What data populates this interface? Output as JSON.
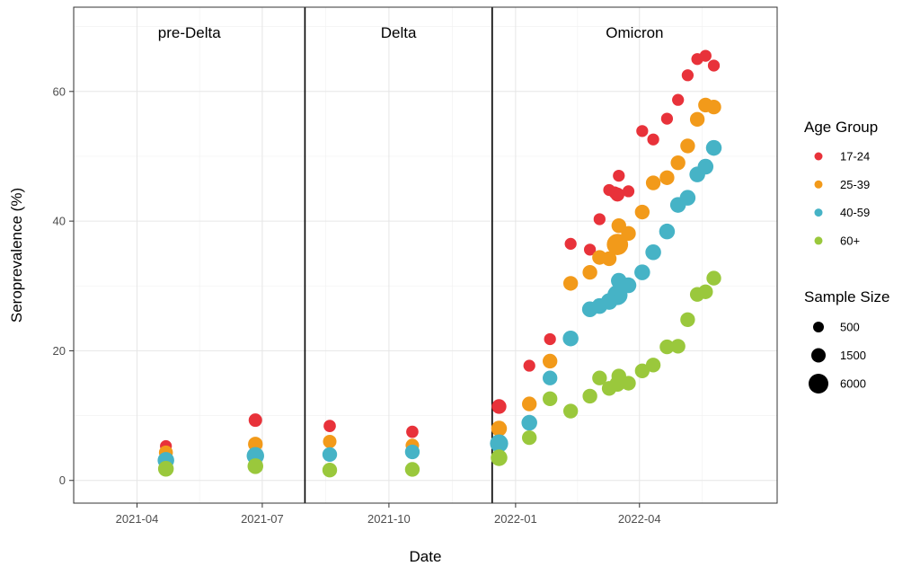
{
  "chart_data": {
    "type": "scatter",
    "xlabel": "Date",
    "ylabel": "Seroprevalence (%)",
    "x_type": "date",
    "xlim": [
      "2021-02-14",
      "2022-07-10"
    ],
    "ylim": [
      -3.5,
      73
    ],
    "x_ticks": [
      "2021-04-01",
      "2021-07-01",
      "2021-10-01",
      "2022-01-01",
      "2022-04-01"
    ],
    "x_tick_labels": [
      "2021-04",
      "2021-07",
      "2021-10",
      "2022-01",
      "2022-04"
    ],
    "y_ticks": [
      0,
      20,
      40,
      60
    ],
    "grid": true,
    "periods": [
      {
        "label": "pre-Delta",
        "start": "2021-02-14",
        "end": "2021-08-01"
      },
      {
        "label": "Delta",
        "start": "2021-08-01",
        "end": "2021-12-15"
      },
      {
        "label": "Omicron",
        "start": "2021-12-15",
        "end": "2022-07-10"
      }
    ],
    "period_boundaries": [
      "2021-08-01",
      "2021-12-15"
    ],
    "color_legend": {
      "title": "Age Group",
      "entries": [
        {
          "label": "17-24",
          "color": "#e8323a"
        },
        {
          "label": "25-39",
          "color": "#f29a1a"
        },
        {
          "label": "40-59",
          "color": "#46b3c6"
        },
        {
          "label": "60+",
          "color": "#9ac83c"
        }
      ]
    },
    "size_legend": {
      "title": "Sample Size",
      "entries": [
        {
          "label": "500",
          "value": 500
        },
        {
          "label": "1500",
          "value": 1500
        },
        {
          "label": "6000",
          "value": 6000
        }
      ]
    },
    "series": [
      {
        "name": "17-24",
        "color": "#e8323a",
        "points": [
          {
            "x": "2021-04-22",
            "y": 5.3,
            "n": 500
          },
          {
            "x": "2021-06-26",
            "y": 9.3,
            "n": 1000
          },
          {
            "x": "2021-08-19",
            "y": 8.4,
            "n": 600
          },
          {
            "x": "2021-10-18",
            "y": 7.5,
            "n": 600
          },
          {
            "x": "2021-12-20",
            "y": 11.4,
            "n": 1500
          },
          {
            "x": "2022-01-11",
            "y": 17.7,
            "n": 500
          },
          {
            "x": "2022-01-26",
            "y": 21.8,
            "n": 500
          },
          {
            "x": "2022-02-10",
            "y": 36.5,
            "n": 500
          },
          {
            "x": "2022-02-24",
            "y": 35.6,
            "n": 500
          },
          {
            "x": "2022-03-03",
            "y": 40.3,
            "n": 500
          },
          {
            "x": "2022-03-10",
            "y": 44.8,
            "n": 500
          },
          {
            "x": "2022-03-14",
            "y": 44.4,
            "n": 600
          },
          {
            "x": "2022-03-16",
            "y": 44.1,
            "n": 1200
          },
          {
            "x": "2022-03-17",
            "y": 47.0,
            "n": 500
          },
          {
            "x": "2022-03-24",
            "y": 44.6,
            "n": 500
          },
          {
            "x": "2022-04-03",
            "y": 53.9,
            "n": 500
          },
          {
            "x": "2022-04-11",
            "y": 52.6,
            "n": 500
          },
          {
            "x": "2022-04-21",
            "y": 55.8,
            "n": 500
          },
          {
            "x": "2022-04-29",
            "y": 58.7,
            "n": 500
          },
          {
            "x": "2022-05-06",
            "y": 62.5,
            "n": 500
          },
          {
            "x": "2022-05-13",
            "y": 65.0,
            "n": 500
          },
          {
            "x": "2022-05-19",
            "y": 65.5,
            "n": 500
          },
          {
            "x": "2022-05-25",
            "y": 64.0,
            "n": 500
          }
        ]
      },
      {
        "name": "25-39",
        "color": "#f29a1a",
        "points": [
          {
            "x": "2021-04-22",
            "y": 4.3,
            "n": 1200
          },
          {
            "x": "2021-06-26",
            "y": 5.6,
            "n": 1500
          },
          {
            "x": "2021-08-19",
            "y": 6.0,
            "n": 1000
          },
          {
            "x": "2021-10-18",
            "y": 5.4,
            "n": 1000
          },
          {
            "x": "2021-12-20",
            "y": 8.0,
            "n": 2000
          },
          {
            "x": "2022-01-11",
            "y": 11.8,
            "n": 1500
          },
          {
            "x": "2022-01-26",
            "y": 18.4,
            "n": 1500
          },
          {
            "x": "2022-02-10",
            "y": 30.4,
            "n": 1500
          },
          {
            "x": "2022-02-24",
            "y": 32.1,
            "n": 1500
          },
          {
            "x": "2022-03-03",
            "y": 34.4,
            "n": 1500
          },
          {
            "x": "2022-03-10",
            "y": 34.2,
            "n": 1500
          },
          {
            "x": "2022-03-16",
            "y": 36.4,
            "n": 6000
          },
          {
            "x": "2022-03-17",
            "y": 39.3,
            "n": 1500
          },
          {
            "x": "2022-03-24",
            "y": 38.1,
            "n": 1500
          },
          {
            "x": "2022-04-03",
            "y": 41.4,
            "n": 1500
          },
          {
            "x": "2022-04-11",
            "y": 45.9,
            "n": 1500
          },
          {
            "x": "2022-04-21",
            "y": 46.7,
            "n": 1500
          },
          {
            "x": "2022-04-29",
            "y": 49.0,
            "n": 1500
          },
          {
            "x": "2022-05-06",
            "y": 51.6,
            "n": 1500
          },
          {
            "x": "2022-05-13",
            "y": 55.7,
            "n": 1500
          },
          {
            "x": "2022-05-19",
            "y": 57.9,
            "n": 1500
          },
          {
            "x": "2022-05-25",
            "y": 57.6,
            "n": 1500
          }
        ]
      },
      {
        "name": "40-59",
        "color": "#46b3c6",
        "points": [
          {
            "x": "2021-04-22",
            "y": 3.1,
            "n": 2500
          },
          {
            "x": "2021-06-26",
            "y": 3.8,
            "n": 3000
          },
          {
            "x": "2021-08-19",
            "y": 4.0,
            "n": 1500
          },
          {
            "x": "2021-10-18",
            "y": 4.4,
            "n": 1500
          },
          {
            "x": "2021-12-20",
            "y": 5.7,
            "n": 3500
          },
          {
            "x": "2022-01-11",
            "y": 8.9,
            "n": 2000
          },
          {
            "x": "2022-01-26",
            "y": 15.8,
            "n": 1500
          },
          {
            "x": "2022-02-10",
            "y": 21.9,
            "n": 2000
          },
          {
            "x": "2022-02-24",
            "y": 26.4,
            "n": 2000
          },
          {
            "x": "2022-03-03",
            "y": 26.9,
            "n": 2000
          },
          {
            "x": "2022-03-10",
            "y": 27.6,
            "n": 2500
          },
          {
            "x": "2022-03-16",
            "y": 28.6,
            "n": 5000
          },
          {
            "x": "2022-03-17",
            "y": 30.8,
            "n": 2000
          },
          {
            "x": "2022-03-24",
            "y": 30.1,
            "n": 2000
          },
          {
            "x": "2022-04-03",
            "y": 32.1,
            "n": 2000
          },
          {
            "x": "2022-04-11",
            "y": 35.2,
            "n": 2000
          },
          {
            "x": "2022-04-21",
            "y": 38.4,
            "n": 2000
          },
          {
            "x": "2022-04-29",
            "y": 42.5,
            "n": 2000
          },
          {
            "x": "2022-05-06",
            "y": 43.6,
            "n": 2000
          },
          {
            "x": "2022-05-13",
            "y": 47.2,
            "n": 2000
          },
          {
            "x": "2022-05-19",
            "y": 48.4,
            "n": 2000
          },
          {
            "x": "2022-05-25",
            "y": 51.3,
            "n": 2000
          }
        ]
      },
      {
        "name": "60+",
        "color": "#9ac83c",
        "points": [
          {
            "x": "2021-04-22",
            "y": 1.8,
            "n": 2000
          },
          {
            "x": "2021-06-26",
            "y": 2.2,
            "n": 2000
          },
          {
            "x": "2021-08-19",
            "y": 1.6,
            "n": 1500
          },
          {
            "x": "2021-10-18",
            "y": 1.7,
            "n": 1500
          },
          {
            "x": "2021-12-20",
            "y": 3.5,
            "n": 2500
          },
          {
            "x": "2022-01-11",
            "y": 6.6,
            "n": 1500
          },
          {
            "x": "2022-01-26",
            "y": 12.6,
            "n": 1500
          },
          {
            "x": "2022-02-10",
            "y": 10.7,
            "n": 1500
          },
          {
            "x": "2022-02-24",
            "y": 13.0,
            "n": 1500
          },
          {
            "x": "2022-03-03",
            "y": 15.8,
            "n": 1500
          },
          {
            "x": "2022-03-10",
            "y": 14.2,
            "n": 1500
          },
          {
            "x": "2022-03-16",
            "y": 14.9,
            "n": 2000
          },
          {
            "x": "2022-03-17",
            "y": 16.1,
            "n": 1500
          },
          {
            "x": "2022-03-24",
            "y": 15.0,
            "n": 1500
          },
          {
            "x": "2022-04-03",
            "y": 16.9,
            "n": 1500
          },
          {
            "x": "2022-04-11",
            "y": 17.8,
            "n": 1500
          },
          {
            "x": "2022-04-21",
            "y": 20.6,
            "n": 1500
          },
          {
            "x": "2022-04-29",
            "y": 20.7,
            "n": 1500
          },
          {
            "x": "2022-05-06",
            "y": 24.8,
            "n": 1500
          },
          {
            "x": "2022-05-13",
            "y": 28.7,
            "n": 1500
          },
          {
            "x": "2022-05-19",
            "y": 29.1,
            "n": 1500
          },
          {
            "x": "2022-05-25",
            "y": 31.2,
            "n": 1500
          }
        ]
      }
    ]
  }
}
